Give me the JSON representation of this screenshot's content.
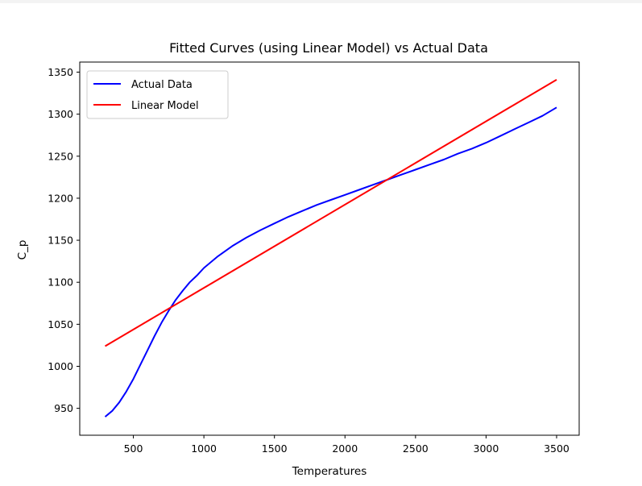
{
  "chart_data": {
    "type": "line",
    "title": "Fitted Curves (using Linear Model) vs Actual Data",
    "xlabel": "Temperatures",
    "ylabel": "C_p",
    "xlim": [
      120,
      3660
    ],
    "ylim": [
      918,
      1362
    ],
    "x_ticks": [
      500,
      1000,
      1500,
      2000,
      2500,
      3000,
      3500
    ],
    "y_ticks": [
      950,
      1000,
      1050,
      1100,
      1150,
      1200,
      1250,
      1300,
      1350
    ],
    "grid": false,
    "legend_position": "top-left",
    "series": [
      {
        "name": "Actual Data",
        "color": "#0000ff",
        "x": [
          300,
          350,
          400,
          450,
          500,
          550,
          600,
          650,
          700,
          750,
          800,
          850,
          900,
          950,
          1000,
          1100,
          1200,
          1300,
          1400,
          1500,
          1600,
          1700,
          1800,
          1900,
          2000,
          2100,
          2200,
          2300,
          2400,
          2500,
          2600,
          2700,
          2800,
          2900,
          3000,
          3100,
          3200,
          3300,
          3400,
          3500
        ],
        "y": [
          940,
          947,
          957,
          970,
          985,
          1002,
          1019,
          1036,
          1052,
          1066,
          1079,
          1090,
          1100,
          1108,
          1117,
          1131,
          1143,
          1153,
          1162,
          1170,
          1178,
          1185,
          1192,
          1198,
          1204,
          1210,
          1216,
          1222,
          1228,
          1234,
          1240,
          1246,
          1253,
          1259,
          1266,
          1274,
          1282,
          1290,
          1298,
          1308
        ]
      },
      {
        "name": "Linear Model",
        "color": "#ff0000",
        "x": [
          300,
          3500
        ],
        "y": [
          1024,
          1341
        ]
      }
    ]
  }
}
